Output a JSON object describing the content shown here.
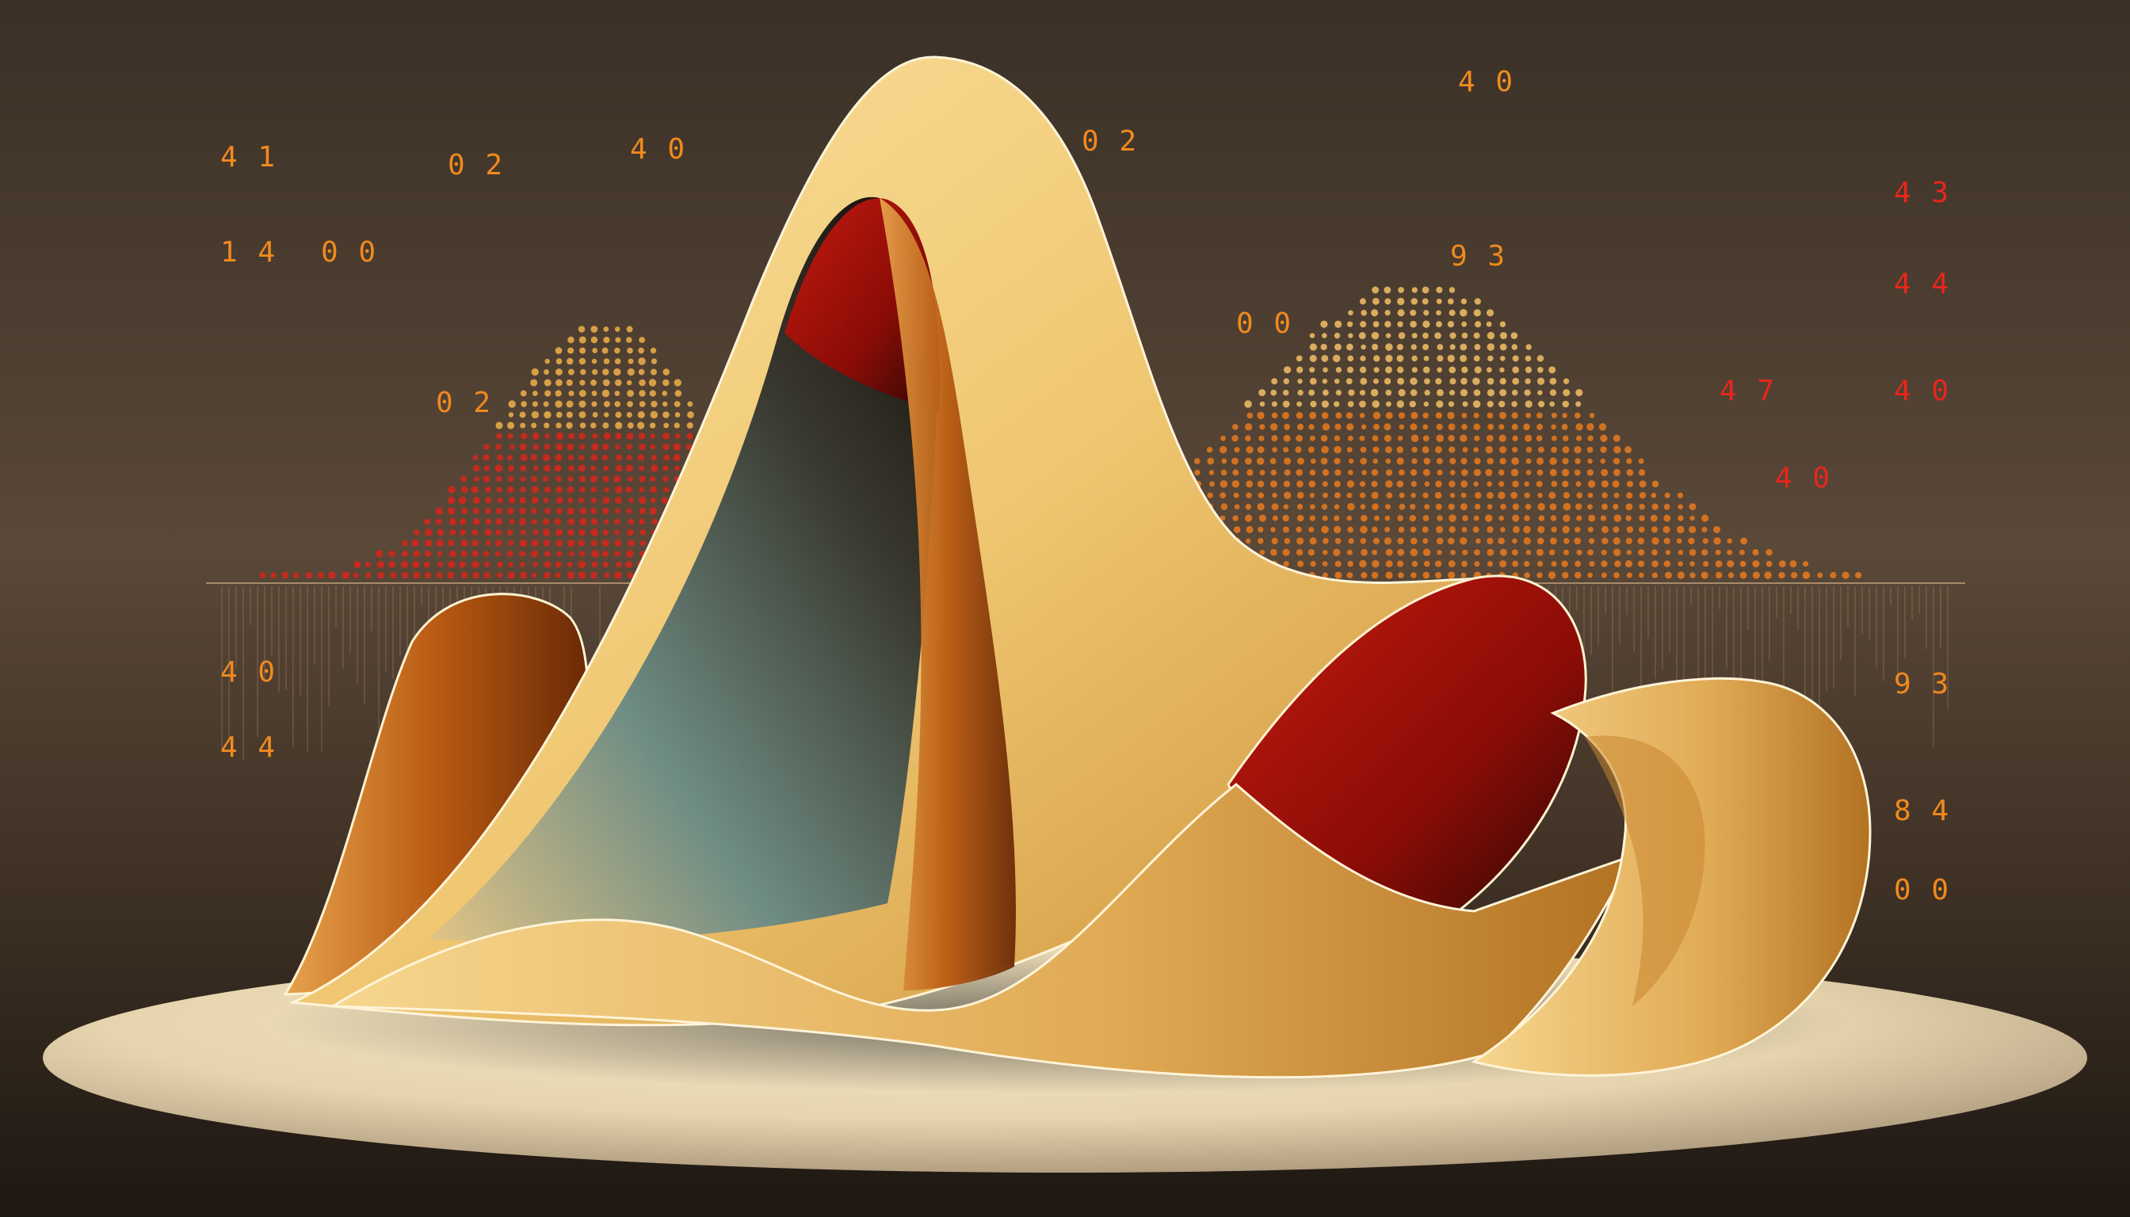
{
  "palette": {
    "backdrop_top": "#3a3026",
    "backdrop_mid": "#5a4838",
    "backdrop_bottom": "#1e1812",
    "disc_light": "#f0e2c2",
    "disc_shadow": "#a89478",
    "ribbon_cream": "#f3d48e",
    "ribbon_gold": "#d9a14a",
    "ribbon_amber": "#c86a1c",
    "ribbon_red": "#b3120c",
    "ribbon_teal": "#6f8d84",
    "dot_orange": "#e87a1e",
    "dot_red": "#d8261a",
    "glyph_orange": "#f08a1e",
    "glyph_red": "#e8261c"
  },
  "glyph_rows": [
    {
      "color": "orange",
      "text": "4 1"
    },
    {
      "color": "orange",
      "text": "0 2"
    },
    {
      "color": "orange",
      "text": "4 0"
    },
    {
      "color": "orange",
      "text": "0 2"
    },
    {
      "color": "orange",
      "text": "4 0"
    },
    {
      "color": "red",
      "text": "4 3"
    },
    {
      "color": "orange",
      "text": "1 4"
    },
    {
      "color": "orange",
      "text": "9 3"
    },
    {
      "color": "red",
      "text": "4 4"
    },
    {
      "color": "orange",
      "text": "0 0"
    },
    {
      "color": "red",
      "text": "4 0"
    },
    {
      "color": "orange",
      "text": "0 2"
    },
    {
      "color": "orange",
      "text": "0 0"
    },
    {
      "color": "red",
      "text": "4 7"
    },
    {
      "color": "red",
      "text": "4 0"
    },
    {
      "color": "orange",
      "text": "4 0"
    },
    {
      "color": "orange",
      "text": "9 3"
    },
    {
      "color": "orange",
      "text": "4 4"
    },
    {
      "color": "orange",
      "text": "8 4"
    },
    {
      "color": "orange",
      "text": "0 0"
    }
  ]
}
